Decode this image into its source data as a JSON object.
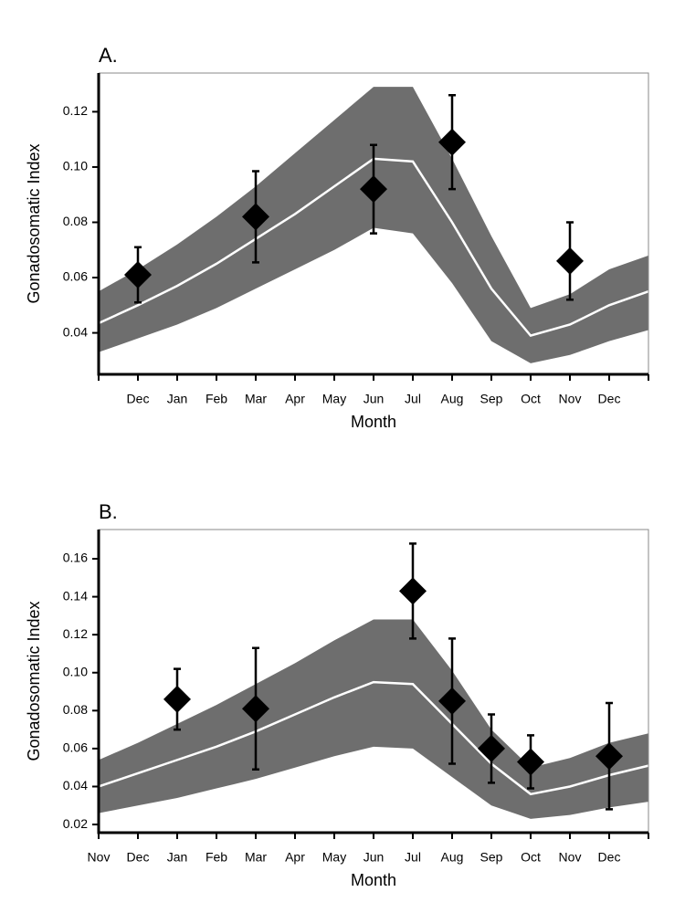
{
  "chart_data": [
    {
      "type": "line",
      "title": "A.",
      "xlabel": "Month",
      "ylabel": "Gonadosomatic Index",
      "categories": [
        null,
        "Dec",
        "Jan",
        "Feb",
        "Mar",
        "Apr",
        "May",
        "Jun",
        "Jul",
        "Aug",
        "Sep",
        "Oct",
        "Nov",
        "Dec",
        null
      ],
      "ylim": [
        0.025,
        0.134
      ],
      "yticks": [
        0.04,
        0.06,
        0.08,
        {
          "value": 0.1,
          "label": "0.10"
        },
        0.12
      ],
      "band": {
        "color": "#6e6e6e",
        "upper": [
          0.055,
          0.063,
          0.072,
          0.082,
          0.093,
          0.105,
          0.117,
          0.129,
          0.129,
          0.103,
          0.075,
          0.049,
          0.054,
          0.063,
          0.068
        ],
        "lower": [
          0.033,
          0.038,
          0.043,
          0.049,
          0.056,
          0.063,
          0.07,
          0.078,
          0.076,
          0.058,
          0.037,
          0.029,
          0.032,
          0.037,
          0.041
        ]
      },
      "line": {
        "color": "#ffffff",
        "values": [
          0.0435,
          0.05,
          0.057,
          0.065,
          0.074,
          0.083,
          0.093,
          0.103,
          0.102,
          0.08,
          0.056,
          0.039,
          0.043,
          0.05,
          0.055
        ]
      },
      "points": {
        "color": "#000000",
        "values": [
          null,
          0.061,
          null,
          null,
          0.082,
          null,
          null,
          0.092,
          null,
          0.109,
          null,
          null,
          0.066,
          null,
          null
        ],
        "errors": [
          null,
          0.01,
          null,
          null,
          0.0165,
          null,
          null,
          0.016,
          null,
          0.017,
          null,
          null,
          0.014,
          null,
          null
        ]
      }
    },
    {
      "type": "line",
      "title": "B.",
      "xlabel": "Month",
      "ylabel": "Gonadosomatic Index",
      "categories": [
        "Nov",
        "Dec",
        "Jan",
        "Feb",
        "Mar",
        "Apr",
        "May",
        "Jun",
        "Jul",
        "Aug",
        "Sep",
        "Oct",
        "Nov",
        "Dec",
        null
      ],
      "ylim": [
        0.0157,
        0.1754
      ],
      "yticks": [
        0.02,
        0.04,
        0.06,
        0.08,
        {
          "value": 0.1,
          "label": "0.10"
        },
        0.12,
        0.14,
        0.16
      ],
      "band": {
        "color": "#6e6e6e",
        "upper": [
          0.054,
          0.063,
          0.073,
          0.083,
          0.094,
          0.105,
          0.117,
          0.128,
          0.128,
          0.101,
          0.07,
          0.05,
          0.055,
          0.063,
          0.068
        ],
        "lower": [
          0.026,
          0.03,
          0.034,
          0.039,
          0.044,
          0.05,
          0.056,
          0.061,
          0.06,
          0.045,
          0.03,
          0.023,
          0.025,
          0.029,
          0.032
        ]
      },
      "line": {
        "color": "#ffffff",
        "values": [
          0.04,
          0.047,
          0.054,
          0.061,
          0.069,
          0.078,
          0.087,
          0.095,
          0.094,
          0.073,
          0.052,
          0.036,
          0.04,
          0.046,
          0.051
        ]
      },
      "points": {
        "color": "#000000",
        "values": [
          null,
          null,
          0.086,
          null,
          0.081,
          null,
          null,
          null,
          0.143,
          0.085,
          0.06,
          0.053,
          null,
          0.056,
          null
        ],
        "errors": [
          null,
          null,
          0.016,
          null,
          0.032,
          null,
          null,
          null,
          0.025,
          0.033,
          0.018,
          0.014,
          null,
          0.028,
          null
        ]
      }
    }
  ]
}
